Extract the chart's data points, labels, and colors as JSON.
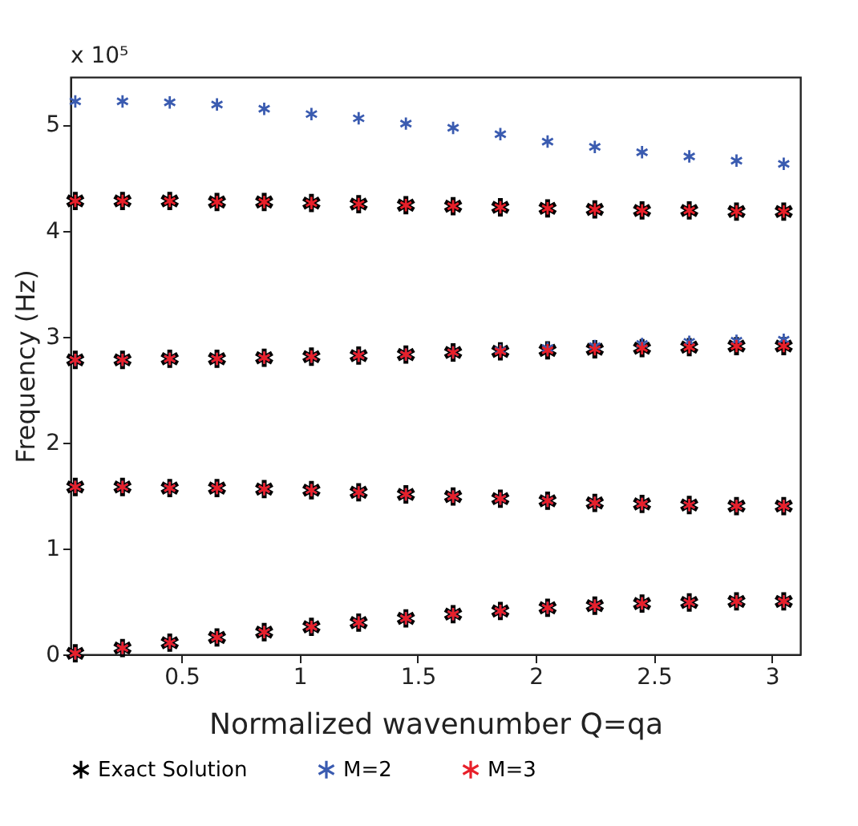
{
  "chart_data": {
    "type": "scatter",
    "xlabel": "Normalized wavenumber Q=qa",
    "ylabel": "Frequency (Hz)",
    "annotations": [
      "x 10⁵"
    ],
    "xlim": [
      0.03,
      3.12
    ],
    "xticks": [
      0.5,
      1,
      1.5,
      2,
      2.5,
      3
    ],
    "ylim": [
      0,
      5.45
    ],
    "yticks": [
      0,
      1,
      2,
      3,
      4,
      5
    ],
    "grid": false,
    "legend": "bottom",
    "marker": "cross",
    "series": [
      {
        "name": "Exact Solution",
        "color": "#000000",
        "x": [
          0.05,
          0.25,
          0.45,
          0.65,
          0.85,
          1.05,
          1.25,
          1.45,
          1.65,
          1.85,
          2.05,
          2.25,
          2.45,
          2.65,
          2.85,
          3.05,
          0.05,
          0.25,
          0.45,
          0.65,
          0.85,
          1.05,
          1.25,
          1.45,
          1.65,
          1.85,
          2.05,
          2.25,
          2.45,
          2.65,
          2.85,
          3.05,
          0.05,
          0.25,
          0.45,
          0.65,
          0.85,
          1.05,
          1.25,
          1.45,
          1.65,
          1.85,
          2.05,
          2.25,
          2.45,
          2.65,
          2.85,
          3.05,
          0.05,
          0.25,
          0.45,
          0.65,
          0.85,
          1.05,
          1.25,
          1.45,
          1.65,
          1.85,
          2.05,
          2.25,
          2.45,
          2.65,
          2.85,
          3.05
        ],
        "values": [
          0.01,
          0.06,
          0.11,
          0.16,
          0.21,
          0.26,
          0.3,
          0.34,
          0.38,
          0.41,
          0.44,
          0.46,
          0.48,
          0.49,
          0.5,
          0.5,
          1.58,
          1.58,
          1.57,
          1.57,
          1.56,
          1.55,
          1.53,
          1.51,
          1.49,
          1.47,
          1.45,
          1.43,
          1.42,
          1.41,
          1.4,
          1.4,
          2.78,
          2.78,
          2.79,
          2.79,
          2.8,
          2.81,
          2.82,
          2.83,
          2.85,
          2.86,
          2.87,
          2.88,
          2.89,
          2.9,
          2.91,
          2.91,
          4.28,
          4.28,
          4.28,
          4.27,
          4.27,
          4.26,
          4.25,
          4.24,
          4.23,
          4.22,
          4.21,
          4.2,
          4.19,
          4.19,
          4.18,
          4.18
        ]
      },
      {
        "name": "M=2",
        "color": "#3a5bb0",
        "x": [
          0.05,
          0.25,
          0.45,
          0.65,
          0.85,
          1.05,
          1.25,
          1.45,
          1.65,
          1.85,
          2.05,
          2.25,
          2.45,
          2.65,
          2.85,
          3.05,
          0.05,
          0.25,
          0.45,
          0.65,
          0.85,
          1.05,
          1.25,
          1.45,
          1.65,
          1.85,
          2.05,
          2.25,
          2.45,
          2.65,
          2.85,
          3.05,
          0.05,
          0.25,
          0.45,
          0.65,
          0.85,
          1.05,
          1.25,
          1.45,
          1.65,
          1.85,
          2.05,
          2.25,
          2.45,
          2.65,
          2.85,
          3.05,
          0.05,
          0.25,
          0.45,
          0.65,
          0.85,
          1.05,
          1.25,
          1.45,
          1.65,
          1.85,
          2.05,
          2.25,
          2.45,
          2.65,
          2.85,
          3.05
        ],
        "values": [
          0.01,
          0.06,
          0.11,
          0.16,
          0.21,
          0.26,
          0.3,
          0.34,
          0.38,
          0.41,
          0.44,
          0.46,
          0.48,
          0.49,
          0.5,
          0.5,
          1.58,
          1.58,
          1.57,
          1.57,
          1.56,
          1.55,
          1.53,
          1.51,
          1.49,
          1.47,
          1.45,
          1.43,
          1.42,
          1.41,
          1.4,
          1.4,
          2.78,
          2.78,
          2.79,
          2.79,
          2.8,
          2.81,
          2.82,
          2.83,
          2.85,
          2.87,
          2.89,
          2.91,
          2.93,
          2.95,
          2.96,
          2.97,
          5.22,
          5.22,
          5.21,
          5.19,
          5.15,
          5.1,
          5.06,
          5.01,
          4.97,
          4.91,
          4.84,
          4.79,
          4.74,
          4.7,
          4.66,
          4.63
        ]
      },
      {
        "name": "M=3",
        "color": "#e8202a",
        "x": [
          0.05,
          0.25,
          0.45,
          0.65,
          0.85,
          1.05,
          1.25,
          1.45,
          1.65,
          1.85,
          2.05,
          2.25,
          2.45,
          2.65,
          2.85,
          3.05,
          0.05,
          0.25,
          0.45,
          0.65,
          0.85,
          1.05,
          1.25,
          1.45,
          1.65,
          1.85,
          2.05,
          2.25,
          2.45,
          2.65,
          2.85,
          3.05,
          0.05,
          0.25,
          0.45,
          0.65,
          0.85,
          1.05,
          1.25,
          1.45,
          1.65,
          1.85,
          2.05,
          2.25,
          2.45,
          2.65,
          2.85,
          3.05,
          0.05,
          0.25,
          0.45,
          0.65,
          0.85,
          1.05,
          1.25,
          1.45,
          1.65,
          1.85,
          2.05,
          2.25,
          2.45,
          2.65,
          2.85,
          3.05
        ],
        "values": [
          0.01,
          0.06,
          0.11,
          0.16,
          0.21,
          0.26,
          0.3,
          0.34,
          0.38,
          0.41,
          0.44,
          0.46,
          0.48,
          0.49,
          0.5,
          0.5,
          1.58,
          1.58,
          1.57,
          1.57,
          1.56,
          1.55,
          1.53,
          1.51,
          1.49,
          1.47,
          1.45,
          1.43,
          1.42,
          1.41,
          1.4,
          1.4,
          2.78,
          2.78,
          2.79,
          2.79,
          2.8,
          2.81,
          2.82,
          2.83,
          2.85,
          2.86,
          2.87,
          2.88,
          2.89,
          2.9,
          2.91,
          2.91,
          4.28,
          4.28,
          4.28,
          4.27,
          4.27,
          4.26,
          4.25,
          4.24,
          4.23,
          4.22,
          4.21,
          4.2,
          4.19,
          4.19,
          4.18,
          4.18
        ]
      }
    ]
  }
}
